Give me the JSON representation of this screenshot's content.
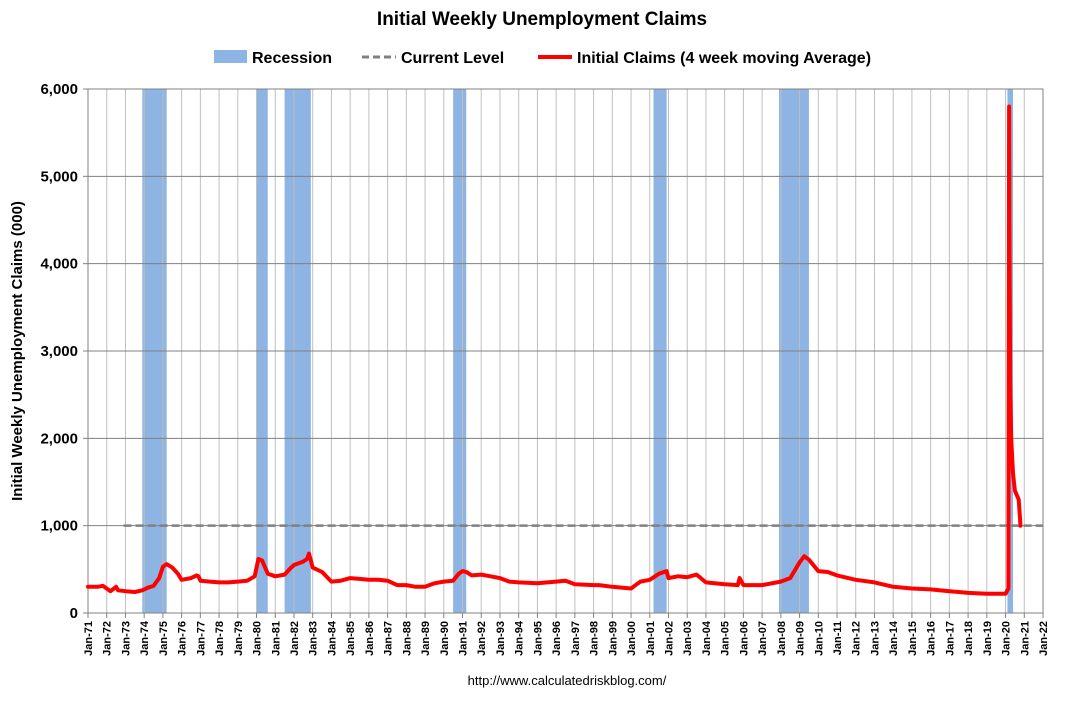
{
  "chart_data": {
    "type": "line",
    "title": "Initial Weekly Unemployment Claims",
    "ylabel": "Initial Weekly Unemployment Claims (000)",
    "xlabel": "",
    "source": "http://www.calculatedriskblog.com/",
    "ylim": [
      0,
      6000
    ],
    "yticks": [
      {
        "value": 0,
        "label": "0"
      },
      {
        "value": 1000,
        "label": "1,000"
      },
      {
        "value": 2000,
        "label": "2,000"
      },
      {
        "value": 3000,
        "label": "3,000"
      },
      {
        "value": 4000,
        "label": "4,000"
      },
      {
        "value": 5000,
        "label": "5,000"
      },
      {
        "value": 6000,
        "label": "6,000"
      }
    ],
    "xlim": [
      1971.0,
      2022.0
    ],
    "xticks": [
      {
        "value": 1971,
        "label": "Jan-71"
      },
      {
        "value": 1972,
        "label": "Jan-72"
      },
      {
        "value": 1973,
        "label": "Jan-73"
      },
      {
        "value": 1974,
        "label": "Jan-74"
      },
      {
        "value": 1975,
        "label": "Jan-75"
      },
      {
        "value": 1976,
        "label": "Jan-76"
      },
      {
        "value": 1977,
        "label": "Jan-77"
      },
      {
        "value": 1978,
        "label": "Jan-78"
      },
      {
        "value": 1979,
        "label": "Jan-79"
      },
      {
        "value": 1980,
        "label": "Jan-80"
      },
      {
        "value": 1981,
        "label": "Jan-81"
      },
      {
        "value": 1982,
        "label": "Jan-82"
      },
      {
        "value": 1983,
        "label": "Jan-83"
      },
      {
        "value": 1984,
        "label": "Jan-84"
      },
      {
        "value": 1985,
        "label": "Jan-85"
      },
      {
        "value": 1986,
        "label": "Jan-86"
      },
      {
        "value": 1987,
        "label": "Jan-87"
      },
      {
        "value": 1988,
        "label": "Jan-88"
      },
      {
        "value": 1989,
        "label": "Jan-89"
      },
      {
        "value": 1990,
        "label": "Jan-90"
      },
      {
        "value": 1991,
        "label": "Jan-91"
      },
      {
        "value": 1992,
        "label": "Jan-92"
      },
      {
        "value": 1993,
        "label": "Jan-93"
      },
      {
        "value": 1994,
        "label": "Jan-94"
      },
      {
        "value": 1995,
        "label": "Jan-95"
      },
      {
        "value": 1996,
        "label": "Jan-96"
      },
      {
        "value": 1997,
        "label": "Jan-97"
      },
      {
        "value": 1998,
        "label": "Jan-98"
      },
      {
        "value": 1999,
        "label": "Jan-99"
      },
      {
        "value": 2000,
        "label": "Jan-00"
      },
      {
        "value": 2001,
        "label": "Jan-01"
      },
      {
        "value": 2002,
        "label": "Jan-02"
      },
      {
        "value": 2003,
        "label": "Jan-03"
      },
      {
        "value": 2004,
        "label": "Jan-04"
      },
      {
        "value": 2005,
        "label": "Jan-05"
      },
      {
        "value": 2006,
        "label": "Jan-06"
      },
      {
        "value": 2007,
        "label": "Jan-07"
      },
      {
        "value": 2008,
        "label": "Jan-08"
      },
      {
        "value": 2009,
        "label": "Jan-09"
      },
      {
        "value": 2010,
        "label": "Jan-10"
      },
      {
        "value": 2011,
        "label": "Jan-11"
      },
      {
        "value": 2012,
        "label": "Jan-12"
      },
      {
        "value": 2013,
        "label": "Jan-13"
      },
      {
        "value": 2014,
        "label": "Jan-14"
      },
      {
        "value": 2015,
        "label": "Jan-15"
      },
      {
        "value": 2016,
        "label": "Jan-16"
      },
      {
        "value": 2017,
        "label": "Jan-17"
      },
      {
        "value": 2018,
        "label": "Jan-18"
      },
      {
        "value": 2019,
        "label": "Jan-19"
      },
      {
        "value": 2020,
        "label": "Jan-20"
      },
      {
        "value": 2021,
        "label": "Jan-21"
      },
      {
        "value": 2022,
        "label": "Jan-22"
      }
    ],
    "grid": true,
    "legend_position": "top-center",
    "legend": [
      {
        "label": "Recession",
        "kind": "patch",
        "color": "#8db4e2"
      },
      {
        "label": "Current Level",
        "kind": "dashed",
        "color": "#808080"
      },
      {
        "label": "Initial Claims (4 week moving Average)",
        "kind": "line",
        "color": "#ff0000"
      }
    ],
    "recessions": [
      {
        "start": 1973.9,
        "end": 1975.2
      },
      {
        "start": 1980.0,
        "end": 1980.6
      },
      {
        "start": 1981.5,
        "end": 1982.9
      },
      {
        "start": 1990.5,
        "end": 1991.2
      },
      {
        "start": 2001.2,
        "end": 2001.9
      },
      {
        "start": 2007.9,
        "end": 2009.5
      },
      {
        "start": 2020.1,
        "end": 2020.4
      }
    ],
    "current_level": {
      "value": 1000,
      "x_start": 1972.9,
      "x_end": 2022.0
    },
    "series": [
      {
        "name": "Initial Claims (4 week moving Average)",
        "color": "#ff0000",
        "x": [
          1971.0,
          1971.5,
          1971.8,
          1972.2,
          1972.5,
          1972.6,
          1973.0,
          1973.5,
          1973.9,
          1974.2,
          1974.5,
          1974.8,
          1975.0,
          1975.2,
          1975.5,
          1975.8,
          1976.0,
          1976.5,
          1976.8,
          1976.9,
          1977.0,
          1977.5,
          1978.0,
          1978.5,
          1979.0,
          1979.5,
          1979.9,
          1980.1,
          1980.3,
          1980.6,
          1981.0,
          1981.5,
          1981.8,
          1982.0,
          1982.5,
          1982.7,
          1982.8,
          1983.0,
          1983.5,
          1984.0,
          1984.5,
          1985.0,
          1985.5,
          1986.0,
          1986.5,
          1987.0,
          1987.5,
          1988.0,
          1988.5,
          1989.0,
          1989.5,
          1990.0,
          1990.5,
          1990.8,
          1991.0,
          1991.2,
          1991.5,
          1992.0,
          1992.5,
          1993.0,
          1993.5,
          1994.0,
          1995.0,
          1996.0,
          1996.5,
          1997.0,
          1998.0,
          1998.3,
          1999.0,
          2000.0,
          2000.5,
          2001.0,
          2001.5,
          2001.9,
          2002.0,
          2002.5,
          2003.0,
          2003.5,
          2004.0,
          2005.0,
          2005.7,
          2005.8,
          2006.0,
          2007.0,
          2008.0,
          2008.5,
          2009.0,
          2009.25,
          2009.5,
          2010.0,
          2010.5,
          2011.0,
          2012.0,
          2013.0,
          2014.0,
          2015.0,
          2016.0,
          2017.0,
          2017.5,
          2018.0,
          2019.0,
          2020.0,
          2020.15,
          2020.19,
          2020.21,
          2020.25,
          2020.3,
          2020.4,
          2020.5,
          2020.7,
          2020.8
        ],
        "values": [
          300,
          300,
          310,
          250,
          300,
          260,
          250,
          240,
          260,
          290,
          310,
          400,
          530,
          560,
          520,
          450,
          380,
          400,
          430,
          420,
          370,
          360,
          350,
          350,
          360,
          370,
          420,
          620,
          600,
          450,
          420,
          440,
          510,
          550,
          590,
          620,
          680,
          520,
          470,
          360,
          370,
          400,
          390,
          380,
          380,
          370,
          320,
          320,
          300,
          300,
          340,
          360,
          370,
          450,
          480,
          470,
          430,
          440,
          420,
          400,
          360,
          350,
          340,
          360,
          370,
          330,
          320,
          320,
          300,
          280,
          360,
          380,
          450,
          480,
          400,
          420,
          410,
          440,
          350,
          330,
          320,
          400,
          320,
          320,
          360,
          400,
          580,
          650,
          610,
          480,
          470,
          430,
          380,
          350,
          300,
          280,
          270,
          250,
          240,
          230,
          220,
          220,
          280,
          5800,
          4200,
          2600,
          2000,
          1600,
          1400,
          1300,
          1000
        ]
      }
    ]
  }
}
